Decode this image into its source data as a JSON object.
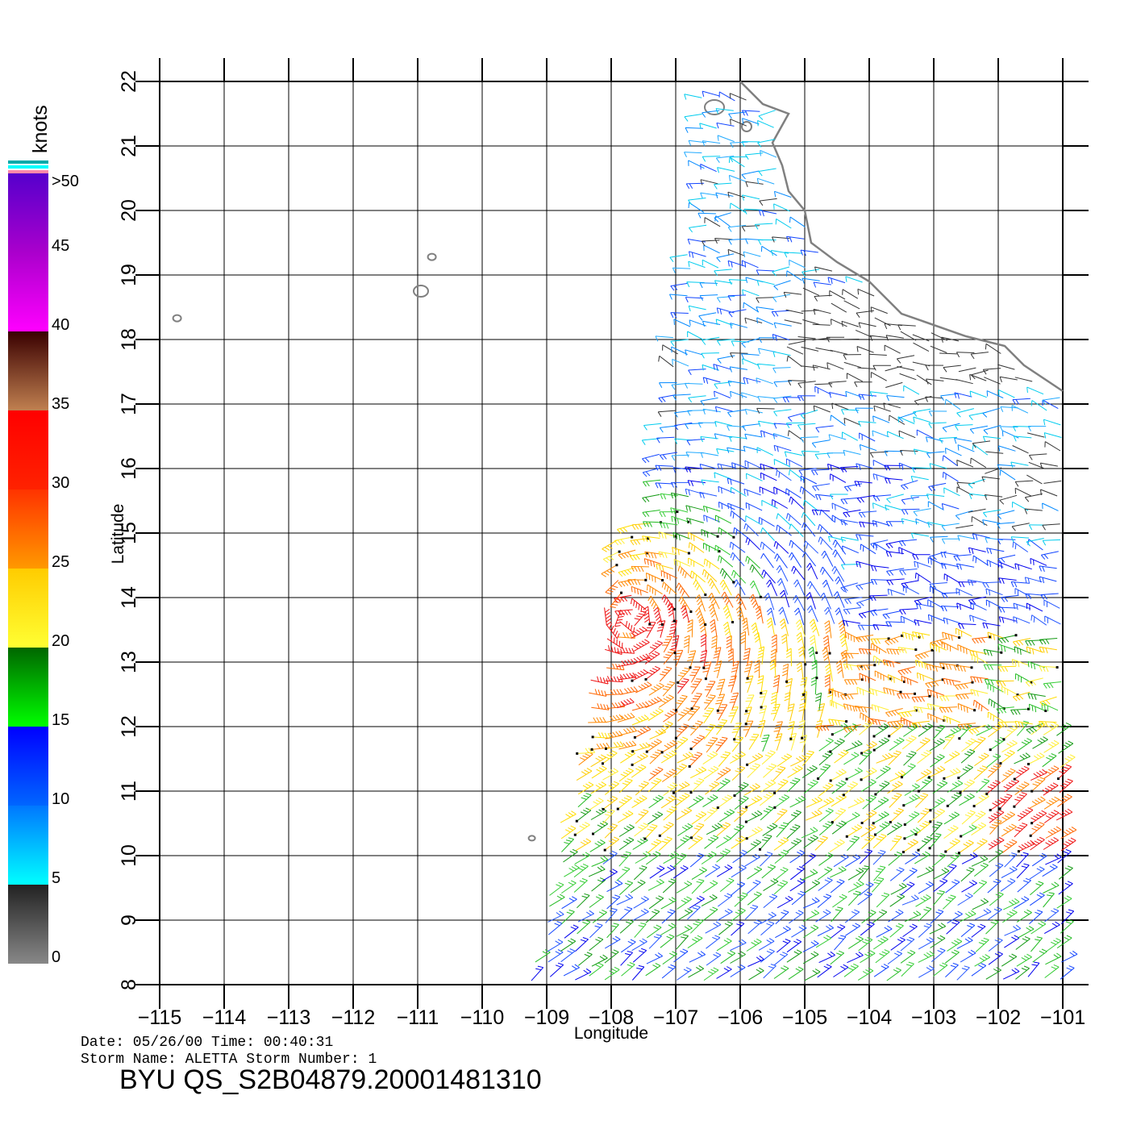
{
  "colorbar": {
    "unit": "knots",
    "labels": [
      ">50",
      "45",
      "40",
      "35",
      "30",
      "25",
      "20",
      "15",
      "10",
      "5",
      "0"
    ],
    "bands": [
      {
        "from": 0,
        "to": 5,
        "top": "#222222",
        "bottom": "#888888"
      },
      {
        "from": 5,
        "to": 10,
        "top": "#0077ff",
        "bottom": "#00ffff"
      },
      {
        "from": 10,
        "to": 15,
        "top": "#0000ff",
        "bottom": "#0066ff"
      },
      {
        "from": 15,
        "to": 20,
        "top": "#006600",
        "bottom": "#00ff00"
      },
      {
        "from": 20,
        "to": 25,
        "top": "#ffcc00",
        "bottom": "#ffff33"
      },
      {
        "from": 25,
        "to": 30,
        "top": "#ff3300",
        "bottom": "#ff9900"
      },
      {
        "from": 30,
        "to": 35,
        "top": "#ff0000",
        "bottom": "#ff2200"
      },
      {
        "from": 35,
        "to": 40,
        "top": "#3a0000",
        "bottom": "#c08050"
      },
      {
        "from": 40,
        "to": 45,
        "top": "#aa00cc",
        "bottom": "#ff00ff"
      },
      {
        "from": 45,
        "to": 50,
        "top": "#5500cc",
        "bottom": "#aa00cc"
      }
    ],
    "cap_colors": [
      "#00aaaa",
      "#00ffff",
      "#ff88aa"
    ]
  },
  "map": {
    "lon_range": [
      -115,
      -101
    ],
    "lat_range": [
      8,
      22
    ],
    "lon_ticks": [
      "-115",
      "-114",
      "-113",
      "-112",
      "-111",
      "-110",
      "-109",
      "-108",
      "-107",
      "-106",
      "-105",
      "-104",
      "-103",
      "-102",
      "-101"
    ],
    "lat_ticks": [
      "8",
      "9",
      "10",
      "11",
      "12",
      "13",
      "14",
      "15",
      "16",
      "17",
      "18",
      "19",
      "20",
      "21",
      "22"
    ],
    "xlabel": "Longitude",
    "ylabel": "Latitude",
    "grid": true,
    "coast_color": "#808080",
    "coastline": [
      [
        -106.0,
        22.0
      ],
      [
        -105.65,
        21.65
      ],
      [
        -105.25,
        21.5
      ],
      [
        -105.5,
        21.05
      ],
      [
        -105.35,
        20.7
      ],
      [
        -105.25,
        20.3
      ],
      [
        -105.0,
        20.0
      ],
      [
        -104.9,
        19.5
      ],
      [
        -104.5,
        19.2
      ],
      [
        -104.0,
        18.9
      ],
      [
        -103.5,
        18.4
      ],
      [
        -102.5,
        18.05
      ],
      [
        -101.9,
        17.9
      ],
      [
        -101.6,
        17.6
      ],
      [
        -101.0,
        17.2
      ]
    ],
    "islands": [
      {
        "name": "Islas Marías",
        "lon": -106.4,
        "lat": 21.6
      },
      {
        "name": "Isla Isabel",
        "lon": -105.9,
        "lat": 21.3
      },
      {
        "name": "Isla Socorro",
        "lon": -110.95,
        "lat": 18.75
      },
      {
        "name": "Isla San Benedicto",
        "lon": -110.78,
        "lat": 19.28
      },
      {
        "name": "Isla Clarión",
        "lon": -114.73,
        "lat": 18.33
      },
      {
        "name": "Isla Clipperton",
        "lon": -109.23,
        "lat": 10.27
      }
    ],
    "wind_field": {
      "storm_center": {
        "lon": -107.7,
        "lat": 13.7
      },
      "swath_bounds": {
        "lon_min": -109.3,
        "lon_max": -101.0,
        "lat_min": 8.0,
        "lat_max": 22.0
      }
    }
  },
  "footer": {
    "date_line": "Date: 05/26/00   Time: 00:40:31",
    "storm_line": "Storm Name: ALETTA   Storm Number: 1",
    "title": "BYU QS_S2B04879.20001481310"
  }
}
